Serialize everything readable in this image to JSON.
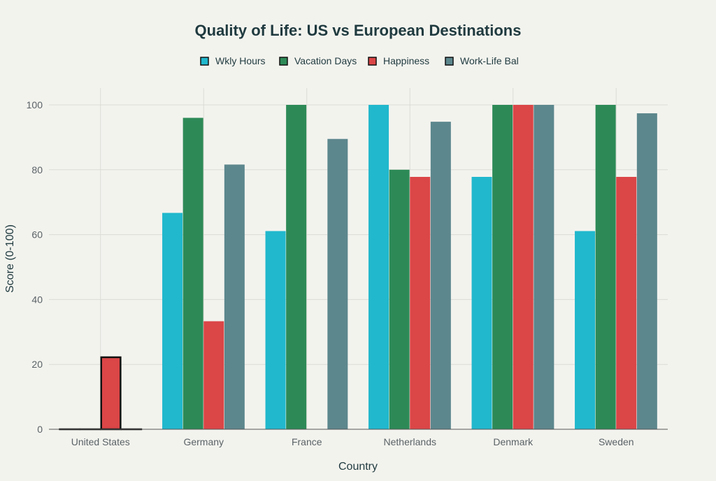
{
  "chart_data": {
    "type": "bar",
    "title": "Quality of Life: US vs European Destinations",
    "xlabel": "Country",
    "ylabel": "Score (0-100)",
    "ylim": [
      0,
      105
    ],
    "yticks": [
      0,
      20,
      40,
      60,
      80,
      100
    ],
    "grid": true,
    "legend_position": "top-center",
    "categories": [
      "United States",
      "Germany",
      "France",
      "Netherlands",
      "Denmark",
      "Sweden"
    ],
    "highlighted_category": "United States",
    "series": [
      {
        "name": "Wkly Hours",
        "color": "#21b8cd",
        "values": [
          0,
          66.7,
          61.1,
          100,
          77.8,
          61.1
        ]
      },
      {
        "name": "Vacation Days",
        "color": "#2d8a57",
        "values": [
          0,
          96,
          100,
          80,
          100,
          100
        ]
      },
      {
        "name": "Happiness",
        "color": "#db4647",
        "values": [
          22.2,
          33.3,
          0,
          77.8,
          100,
          77.8
        ]
      },
      {
        "name": "Work-Life Bal",
        "color": "#5c878d",
        "values": [
          0,
          81.6,
          89.5,
          94.8,
          100,
          97.4
        ]
      }
    ]
  }
}
